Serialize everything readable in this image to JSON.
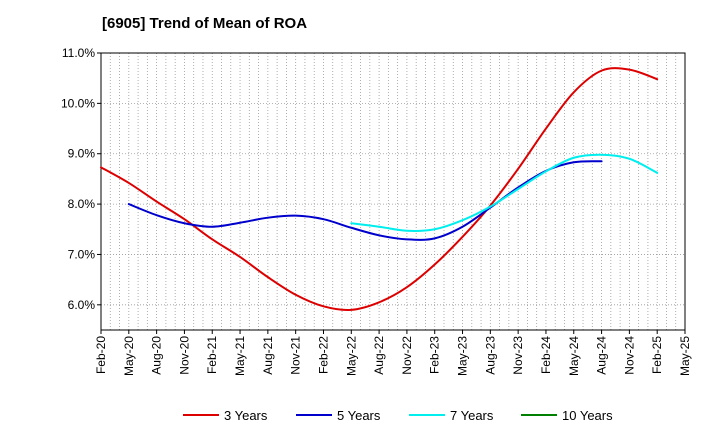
{
  "chart_data": {
    "type": "line",
    "title": "[6905]  Trend of Mean of ROA",
    "xlabel": "",
    "ylabel": "",
    "ylim": [
      5.5,
      11.0
    ],
    "y_ticks": [
      6.0,
      7.0,
      8.0,
      9.0,
      10.0,
      11.0
    ],
    "y_tick_labels": [
      "6.0%",
      "7.0%",
      "8.0%",
      "9.0%",
      "10.0%",
      "11.0%"
    ],
    "x_tick_labels": [
      "Feb-20",
      "May-20",
      "Aug-20",
      "Nov-20",
      "Feb-21",
      "May-21",
      "Aug-21",
      "Nov-21",
      "Feb-22",
      "May-22",
      "Aug-22",
      "Nov-22",
      "Feb-23",
      "May-23",
      "Aug-23",
      "Nov-23",
      "Feb-24",
      "May-24",
      "Aug-24",
      "Nov-24",
      "Feb-25",
      "May-25"
    ],
    "grid": true,
    "legend_position": "bottom",
    "series": [
      {
        "name": "3 Years",
        "color": "#dd0000",
        "start_index": 0,
        "values": [
          8.73,
          8.42,
          8.05,
          7.7,
          7.3,
          6.95,
          6.55,
          6.2,
          5.97,
          5.9,
          6.05,
          6.35,
          6.8,
          7.35,
          7.97,
          8.7,
          9.5,
          10.22,
          10.65,
          10.67,
          10.48
        ]
      },
      {
        "name": "5 Years",
        "color": "#0000cc",
        "start_index": 1,
        "values": [
          8.0,
          7.78,
          7.62,
          7.55,
          7.63,
          7.73,
          7.77,
          7.7,
          7.53,
          7.38,
          7.3,
          7.32,
          7.55,
          7.93,
          8.33,
          8.66,
          8.83,
          8.85
        ]
      },
      {
        "name": "7 Years",
        "color": "#00eeee",
        "start_index": 9,
        "values": [
          7.62,
          7.55,
          7.47,
          7.5,
          7.68,
          7.95,
          8.3,
          8.65,
          8.92,
          8.98,
          8.9,
          8.62
        ]
      },
      {
        "name": "10 Years",
        "color": "#008000",
        "start_index": 0,
        "values": []
      }
    ]
  }
}
